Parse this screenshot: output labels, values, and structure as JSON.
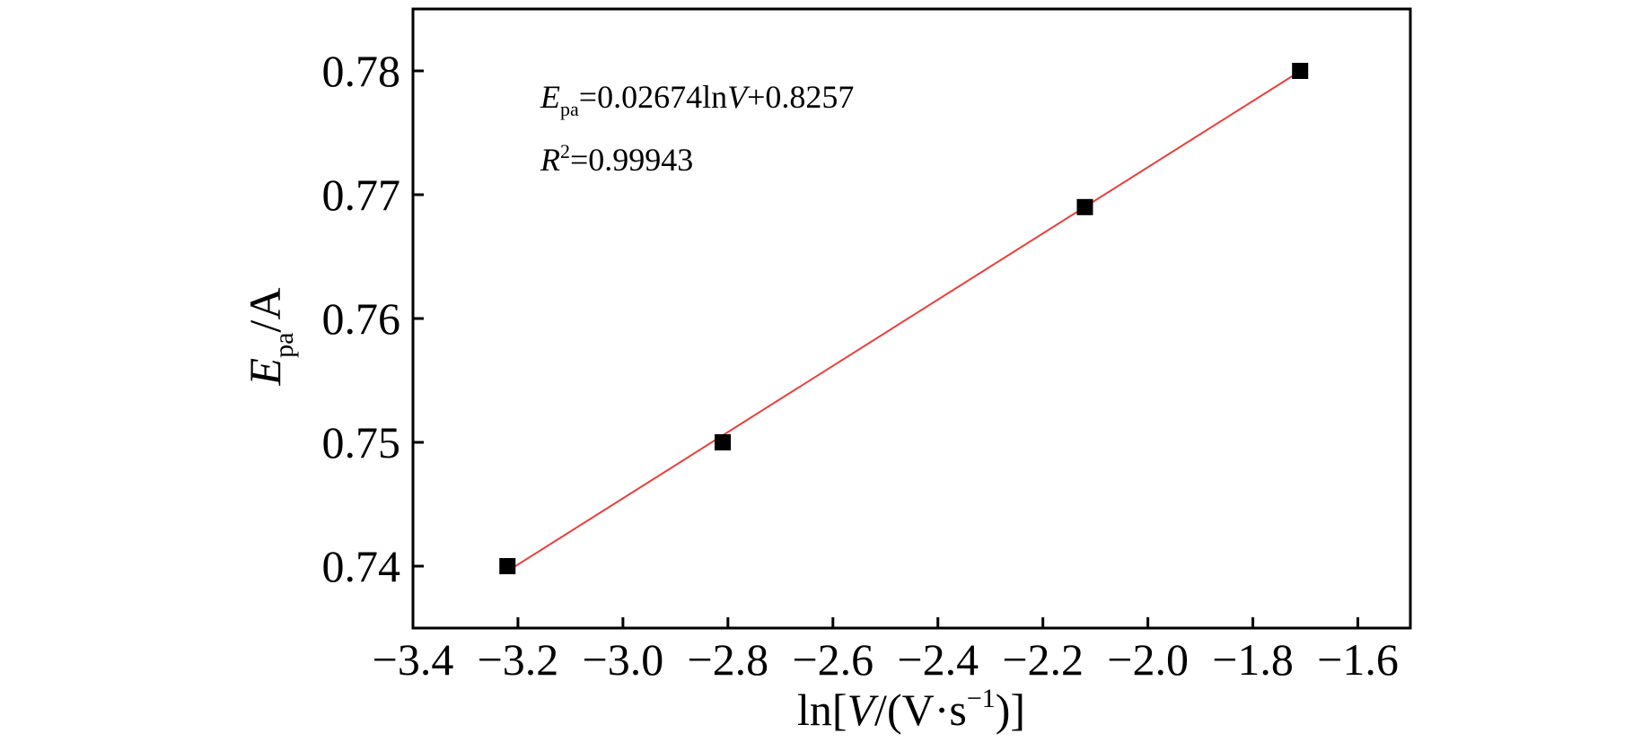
{
  "chart_data": {
    "type": "scatter",
    "x_ticks": [
      "−3.4",
      "−3.2",
      "−3.0",
      "−2.8",
      "−2.6",
      "−2.4",
      "−2.2",
      "−2.0",
      "−1.8",
      "−1.6"
    ],
    "y_ticks": [
      "0.74",
      "0.75",
      "0.76",
      "0.77",
      "0.78"
    ],
    "xlim": [
      -3.4,
      -1.5
    ],
    "ylim": [
      0.735,
      0.785
    ],
    "x_tick_values": [
      -3.4,
      -3.2,
      -3.0,
      -2.8,
      -2.6,
      -2.4,
      -2.2,
      -2.0,
      -1.8,
      -1.6
    ],
    "y_tick_values": [
      0.74,
      0.75,
      0.76,
      0.77,
      0.78
    ],
    "series": [
      {
        "x": [
          -3.22,
          -2.81,
          -2.12,
          -1.71
        ],
        "y": [
          0.74,
          0.75,
          0.769,
          0.78
        ],
        "marker": "square",
        "color": "#000000"
      }
    ],
    "fit_line": {
      "slope": 0.02674,
      "intercept": 0.8257,
      "x_range": [
        -3.22,
        -1.71
      ],
      "color": "#e8403a"
    },
    "xlabel": {
      "prefix": "ln[",
      "italic": "V",
      "middle": "/(V·s",
      "sup": "−1",
      "suffix": ")]"
    },
    "ylabel": {
      "italic": "E",
      "sub": "pa",
      "suffix": "/A"
    },
    "annotations": {
      "equation": {
        "italic": "E",
        "sub": "pa",
        "mid": "=0.02674ln",
        "italic2": "V",
        "rest": "+0.8257"
      },
      "r2": {
        "italic": "R",
        "sup": "2",
        "rest": "=0.99943"
      }
    },
    "grid": false
  }
}
